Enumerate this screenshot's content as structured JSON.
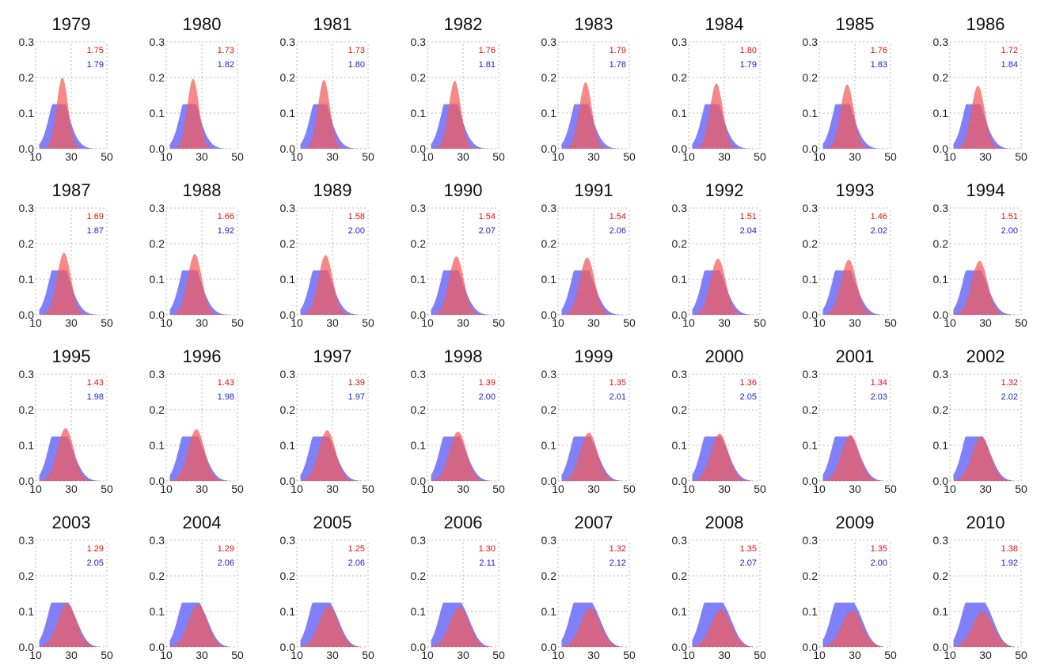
{
  "chart_data": {
    "type": "area",
    "layout": {
      "rows": 4,
      "cols": 8
    },
    "colors": {
      "red": "#f25a5a",
      "blue": "#6e6ef8",
      "red_text": "#e01010",
      "blue_text": "#2020d0",
      "grid": "#bbbbbb"
    },
    "xlim": [
      10,
      50
    ],
    "ylim": [
      0,
      0.3
    ],
    "xticks": [
      "10",
      "30",
      "50"
    ],
    "yticks": [
      "0.0",
      "0.1",
      "0.2",
      "0.3"
    ],
    "panels": [
      {
        "title": "1979",
        "red_stat": "1.75",
        "blue_stat": "1.79"
      },
      {
        "title": "1980",
        "red_stat": "1.73",
        "blue_stat": "1.82"
      },
      {
        "title": "1981",
        "red_stat": "1.73",
        "blue_stat": "1.80"
      },
      {
        "title": "1982",
        "red_stat": "1.76",
        "blue_stat": "1.81"
      },
      {
        "title": "1983",
        "red_stat": "1.79",
        "blue_stat": "1.78"
      },
      {
        "title": "1984",
        "red_stat": "1.80",
        "blue_stat": "1.79"
      },
      {
        "title": "1985",
        "red_stat": "1.76",
        "blue_stat": "1.83"
      },
      {
        "title": "1986",
        "red_stat": "1.72",
        "blue_stat": "1.84"
      },
      {
        "title": "1987",
        "red_stat": "1.69",
        "blue_stat": "1.87"
      },
      {
        "title": "1988",
        "red_stat": "1.66",
        "blue_stat": "1.92"
      },
      {
        "title": "1989",
        "red_stat": "1.58",
        "blue_stat": "2.00"
      },
      {
        "title": "1990",
        "red_stat": "1.54",
        "blue_stat": "2.07"
      },
      {
        "title": "1991",
        "red_stat": "1.54",
        "blue_stat": "2.06"
      },
      {
        "title": "1992",
        "red_stat": "1.51",
        "blue_stat": "2.04"
      },
      {
        "title": "1993",
        "red_stat": "1.46",
        "blue_stat": "2.02"
      },
      {
        "title": "1994",
        "red_stat": "1.51",
        "blue_stat": "2.00"
      },
      {
        "title": "1995",
        "red_stat": "1.43",
        "blue_stat": "1.98"
      },
      {
        "title": "1996",
        "red_stat": "1.43",
        "blue_stat": "1.98"
      },
      {
        "title": "1997",
        "red_stat": "1.39",
        "blue_stat": "1.97"
      },
      {
        "title": "1998",
        "red_stat": "1.39",
        "blue_stat": "2.00"
      },
      {
        "title": "1999",
        "red_stat": "1.35",
        "blue_stat": "2.01"
      },
      {
        "title": "2000",
        "red_stat": "1.36",
        "blue_stat": "2.05"
      },
      {
        "title": "2001",
        "red_stat": "1.34",
        "blue_stat": "2.03"
      },
      {
        "title": "2002",
        "red_stat": "1.32",
        "blue_stat": "2.02"
      },
      {
        "title": "2003",
        "red_stat": "1.29",
        "blue_stat": "2.05"
      },
      {
        "title": "2004",
        "red_stat": "1.29",
        "blue_stat": "2.06"
      },
      {
        "title": "2005",
        "red_stat": "1.25",
        "blue_stat": "2.06"
      },
      {
        "title": "2006",
        "red_stat": "1.30",
        "blue_stat": "2.11"
      },
      {
        "title": "2007",
        "red_stat": "1.32",
        "blue_stat": "2.12"
      },
      {
        "title": "2008",
        "red_stat": "1.35",
        "blue_stat": "2.07"
      },
      {
        "title": "2009",
        "red_stat": "1.35",
        "blue_stat": "2.00"
      },
      {
        "title": "2010",
        "red_stat": "1.38",
        "blue_stat": "1.92"
      }
    ]
  }
}
